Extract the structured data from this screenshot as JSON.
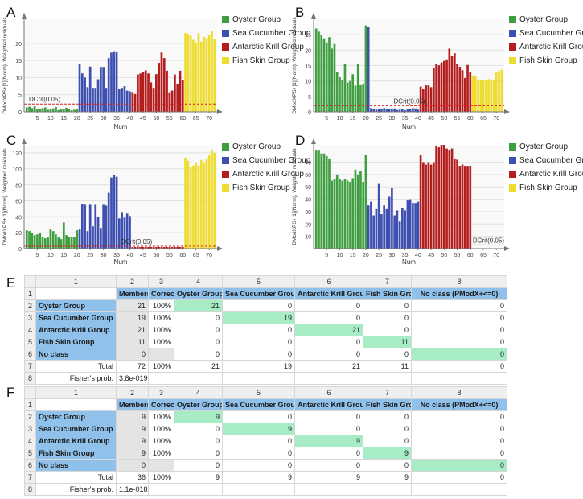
{
  "colors": {
    "oyster": "#3f9e3f",
    "cucumber": "#3d4fb0",
    "krill": "#b31d1d",
    "fish": "#eedc2e"
  },
  "legend": [
    {
      "name": "Oyster Group",
      "color": "#3f9e3f"
    },
    {
      "name": "Sea Cucumber Group",
      "color": "#3d4fb0"
    },
    {
      "name": "Antarctic Krill Group",
      "color": "#b31d1d"
    },
    {
      "name": "Fish Skin Group",
      "color": "#eedc2e"
    }
  ],
  "chart_data": [
    {
      "panel": "A",
      "type": "bar",
      "ylabel": "DModXPS+[1](Norm), Weighted residuals",
      "xlabel": "Num",
      "xticks": [
        5,
        10,
        15,
        20,
        25,
        30,
        35,
        40,
        45,
        50,
        55,
        60,
        65,
        70
      ],
      "yticks": [
        0,
        5,
        10,
        15,
        20
      ],
      "ylim": [
        0,
        27
      ],
      "dcrit": 2.3,
      "dcrit_label": "DCrit(0.05)",
      "values": [
        1.3,
        1.5,
        1.1,
        1.6,
        0.8,
        0.9,
        1.1,
        1.3,
        0.6,
        0.7,
        1.0,
        1.4,
        0.5,
        0.9,
        0.7,
        1.2,
        0.9,
        0.4,
        0.6,
        0.9,
        13.9,
        11.2,
        10.0,
        7.2,
        13.2,
        7.0,
        7.0,
        9.5,
        13.1,
        13.1,
        7.0,
        15.7,
        17.3,
        17.7,
        17.6,
        6.7,
        7.0,
        7.5,
        6.2,
        6.0,
        5.8,
        5.2,
        10.9,
        11.2,
        11.6,
        12.1,
        11.2,
        8.6,
        7.0,
        11.0,
        14.3,
        17.3,
        15.7,
        12.0,
        5.7,
        6.2,
        10.9,
        8.2,
        12.0,
        9.2,
        23.0,
        22.7,
        22.2,
        21.0,
        20.0,
        22.9,
        20.5,
        21.9,
        21.5,
        22.3,
        23.5,
        21.2
      ]
    },
    {
      "panel": "B",
      "type": "bar",
      "ylabel": "DModXPS+[1](Norm), Weighted residuals",
      "xlabel": "Num",
      "xticks": [
        5,
        10,
        15,
        20,
        25,
        30,
        35,
        40,
        45,
        50,
        55,
        60,
        65,
        70
      ],
      "yticks": [
        0,
        5,
        10,
        15,
        20,
        25
      ],
      "ylim": [
        0,
        30
      ],
      "dcrit": 2.0,
      "dcrit_label": "DCrit(0.05)",
      "values": [
        27.0,
        26.0,
        25.0,
        23.8,
        22.5,
        24.2,
        20.5,
        22.0,
        12.8,
        11.2,
        10.3,
        15.5,
        9.5,
        10.0,
        12.2,
        8.5,
        15.5,
        8.9,
        9.1,
        28.0,
        27.5,
        1.2,
        0.9,
        0.7,
        0.8,
        1.0,
        1.2,
        0.9,
        0.8,
        1.0,
        1.1,
        0.6,
        0.7,
        0.9,
        0.5,
        0.8,
        0.8,
        1.2,
        1.1,
        0.7,
        8.2,
        7.5,
        8.6,
        8.6,
        8.0,
        14.2,
        15.5,
        15.1,
        16.0,
        16.5,
        17.0,
        20.5,
        18.0,
        19.0,
        15.5,
        14.6,
        13.5,
        11.0,
        15.2,
        13.0,
        11.8,
        11.5,
        10.5,
        10.2,
        10.4,
        10.2,
        10.6,
        10.5,
        10.2,
        12.7,
        13.2,
        13.7
      ]
    },
    {
      "panel": "C",
      "type": "bar",
      "ylabel": "DModXPS+[1](Norm), Weighted residuals",
      "xlabel": "Num",
      "xticks": [
        5,
        10,
        15,
        20,
        25,
        30,
        35,
        40,
        45,
        50,
        55,
        60,
        65,
        70
      ],
      "yticks": [
        0,
        20,
        40,
        60,
        80,
        100,
        120
      ],
      "ylim": [
        0,
        130
      ],
      "dcrit": 3.0,
      "dcrit_label": "DCrit(0.05)",
      "values": [
        23,
        22,
        20,
        17,
        18,
        20,
        15,
        13,
        14,
        24,
        22,
        18,
        14,
        12,
        33,
        17,
        15,
        15,
        15,
        23,
        24,
        56,
        55,
        22,
        55,
        28,
        55,
        40,
        26,
        55,
        54,
        70,
        89,
        92,
        90,
        38,
        45,
        39,
        44,
        41,
        2,
        2,
        2,
        2,
        2,
        2,
        2,
        2,
        2,
        2,
        2,
        2,
        2,
        2,
        2,
        2,
        2,
        2,
        2,
        2,
        114,
        110,
        102,
        104,
        108,
        104,
        111,
        108,
        112,
        117,
        124,
        120
      ]
    },
    {
      "panel": "D",
      "type": "bar",
      "ylabel": "DModXPS+[1](Norm), Weighted residuals",
      "xlabel": "Num",
      "xticks": [
        5,
        10,
        15,
        20,
        25,
        30,
        35,
        40,
        45,
        50,
        55,
        60,
        65,
        70
      ],
      "yticks": [
        10,
        20,
        30,
        40,
        50,
        60,
        70
      ],
      "ylim": [
        0,
        84
      ],
      "dcrit": 3.0,
      "dcrit_label": "DCrit(0.05)",
      "values": [
        80,
        80,
        77,
        77,
        75,
        73,
        55,
        56,
        60,
        56,
        55,
        56,
        55,
        54,
        57,
        64,
        60,
        63,
        54,
        76,
        35,
        38,
        27,
        32,
        53,
        28,
        35,
        32,
        42,
        49,
        27,
        31,
        22,
        33,
        31,
        39,
        40,
        37,
        37,
        38,
        76,
        70,
        68,
        70,
        68,
        70,
        83,
        82,
        84,
        84,
        81,
        80,
        81,
        73,
        72,
        67,
        68,
        67,
        67,
        67,
        0,
        0,
        0,
        0,
        0,
        0,
        0,
        0,
        0,
        0,
        0,
        0
      ]
    }
  ],
  "tables": [
    {
      "panel": "E",
      "colnums": [
        "1",
        "2",
        "3",
        "4",
        "5",
        "6",
        "7",
        "8"
      ],
      "rownums": [
        "1",
        "2",
        "3",
        "4",
        "5",
        "6",
        "7",
        "8"
      ],
      "header": [
        "",
        "Members",
        "Correct",
        "Oyster Group",
        "Sea Cucumber Group",
        "Antarctic Krill Group",
        "Fish Skin Group",
        "No class  (PModX+<=0)"
      ],
      "rows": [
        {
          "label": "Oyster Group",
          "members": "21",
          "correct": "100%",
          "cells": [
            "21",
            "0",
            "0",
            "0",
            "0"
          ]
        },
        {
          "label": "Sea Cucumber Group",
          "members": "19",
          "correct": "100%",
          "cells": [
            "0",
            "19",
            "0",
            "0",
            "0"
          ]
        },
        {
          "label": "Antarctic Krill Group",
          "members": "21",
          "correct": "100%",
          "cells": [
            "0",
            "0",
            "21",
            "0",
            "0"
          ]
        },
        {
          "label": "Fish Skin Group",
          "members": "11",
          "correct": "100%",
          "cells": [
            "0",
            "0",
            "0",
            "11",
            "0"
          ]
        },
        {
          "label": "No class",
          "members": "0",
          "correct": "",
          "cells": [
            "0",
            "0",
            "0",
            "0",
            "0"
          ]
        }
      ],
      "total": {
        "label": "Total",
        "members": "72",
        "correct": "100%",
        "cells": [
          "21",
          "19",
          "21",
          "11",
          "0"
        ]
      },
      "fisher": {
        "label": "Fisher's prob.",
        "value": "3.8e-019"
      }
    },
    {
      "panel": "F",
      "colnums": [
        "1",
        "2",
        "3",
        "4",
        "5",
        "6",
        "7",
        "8"
      ],
      "rownums": [
        "1",
        "2",
        "3",
        "4",
        "5",
        "6",
        "7",
        "8"
      ],
      "header": [
        "",
        "Members",
        "Correct",
        "Oyster Group",
        "Sea Cucumber Group",
        "Antarctic Krill Group",
        "Fish Skin Group",
        "No class  (PModX+<=0)"
      ],
      "rows": [
        {
          "label": "Oyster Group",
          "members": "9",
          "correct": "100%",
          "cells": [
            "9",
            "0",
            "0",
            "0",
            "0"
          ]
        },
        {
          "label": "Sea Cucumber Group",
          "members": "9",
          "correct": "100%",
          "cells": [
            "0",
            "9",
            "0",
            "0",
            "0"
          ]
        },
        {
          "label": "Antarctic Krill Group",
          "members": "9",
          "correct": "100%",
          "cells": [
            "0",
            "0",
            "9",
            "0",
            "0"
          ]
        },
        {
          "label": "Fish Skin Group",
          "members": "9",
          "correct": "100%",
          "cells": [
            "0",
            "0",
            "0",
            "9",
            "0"
          ]
        },
        {
          "label": "No class",
          "members": "0",
          "correct": "",
          "cells": [
            "0",
            "0",
            "0",
            "0",
            "0"
          ]
        }
      ],
      "total": {
        "label": "Total",
        "members": "36",
        "correct": "100%",
        "cells": [
          "9",
          "9",
          "9",
          "9",
          "0"
        ]
      },
      "fisher": {
        "label": "Fisher's prob.",
        "value": "1.1e-018"
      }
    }
  ]
}
